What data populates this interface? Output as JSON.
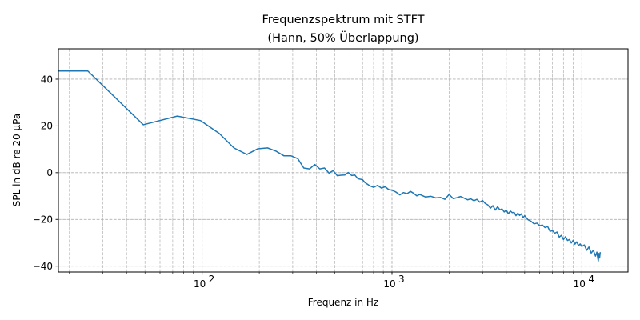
{
  "chart_data": {
    "type": "line",
    "title": "Frequenzspektrum mit STFT",
    "subtitle": "(Hann, 50% Überlappung)",
    "xlabel": "Frequenz in Hz",
    "ylabel": "SPL in dB re 20 µPa",
    "x_scale": "log",
    "xlim": [
      17.5,
      17500
    ],
    "ylim": [
      -42.5,
      53
    ],
    "grid": true,
    "grid_style": "dashed",
    "x_ticks": [
      {
        "value": 100,
        "base": "10",
        "exp": "2"
      },
      {
        "value": 1000,
        "base": "10",
        "exp": "3"
      },
      {
        "value": 10000,
        "base": "10",
        "exp": "4"
      }
    ],
    "y_ticks": [
      -40,
      -20,
      0,
      20,
      40
    ],
    "series": [
      {
        "color": "#1f77b4",
        "points": [
          [
            17.5,
            43.5
          ],
          [
            25,
            43.5
          ],
          [
            49,
            20.5
          ],
          [
            74,
            24.2
          ],
          [
            98,
            22.3
          ],
          [
            123,
            16.8
          ],
          [
            147,
            10.6
          ],
          [
            172,
            7.8
          ],
          [
            196,
            10.2
          ],
          [
            221,
            10.6
          ],
          [
            245,
            9.2
          ],
          [
            270,
            7.2
          ],
          [
            294,
            7.2
          ],
          [
            319,
            6.0
          ],
          [
            343,
            2.0
          ],
          [
            368,
            1.6
          ],
          [
            392,
            3.5
          ],
          [
            417,
            1.6
          ],
          [
            441,
            2.0
          ],
          [
            466,
            -0.2
          ],
          [
            490,
            0.9
          ],
          [
            515,
            -1.3
          ],
          [
            539,
            -1.1
          ],
          [
            564,
            -1.0
          ],
          [
            588,
            0.1
          ],
          [
            613,
            -1.2
          ],
          [
            637,
            -1.0
          ],
          [
            662,
            -2.6
          ],
          [
            700,
            -3.0
          ],
          [
            720,
            -4.2
          ],
          [
            760,
            -5.5
          ],
          [
            800,
            -6.3
          ],
          [
            840,
            -5.4
          ],
          [
            880,
            -6.6
          ],
          [
            920,
            -6.0
          ],
          [
            960,
            -7.2
          ],
          [
            1000,
            -7.5
          ],
          [
            1050,
            -8.3
          ],
          [
            1100,
            -9.5
          ],
          [
            1150,
            -8.5
          ],
          [
            1200,
            -9.0
          ],
          [
            1250,
            -8.0
          ],
          [
            1300,
            -8.8
          ],
          [
            1350,
            -9.9
          ],
          [
            1400,
            -9.3
          ],
          [
            1500,
            -10.4
          ],
          [
            1600,
            -10.1
          ],
          [
            1700,
            -10.8
          ],
          [
            1800,
            -10.6
          ],
          [
            1900,
            -11.4
          ],
          [
            2000,
            -9.3
          ],
          [
            2100,
            -11.1
          ],
          [
            2200,
            -10.7
          ],
          [
            2300,
            -10.2
          ],
          [
            2400,
            -10.9
          ],
          [
            2500,
            -11.6
          ],
          [
            2600,
            -11.2
          ],
          [
            2700,
            -12.0
          ],
          [
            2800,
            -11.4
          ],
          [
            2900,
            -12.6
          ],
          [
            3000,
            -11.9
          ],
          [
            3100,
            -13.2
          ],
          [
            3200,
            -13.8
          ],
          [
            3300,
            -15.2
          ],
          [
            3400,
            -14.1
          ],
          [
            3500,
            -16.0
          ],
          [
            3600,
            -14.6
          ],
          [
            3700,
            -15.9
          ],
          [
            3800,
            -15.5
          ],
          [
            3900,
            -16.8
          ],
          [
            4000,
            -16.0
          ],
          [
            4100,
            -17.6
          ],
          [
            4200,
            -16.4
          ],
          [
            4300,
            -17.1
          ],
          [
            4400,
            -17.0
          ],
          [
            4500,
            -18.4
          ],
          [
            4600,
            -17.3
          ],
          [
            4700,
            -18.3
          ],
          [
            4800,
            -17.6
          ],
          [
            4900,
            -19.3
          ],
          [
            5000,
            -18.4
          ],
          [
            5200,
            -20.1
          ],
          [
            5400,
            -20.8
          ],
          [
            5600,
            -21.9
          ],
          [
            5800,
            -21.6
          ],
          [
            6000,
            -22.7
          ],
          [
            6200,
            -22.4
          ],
          [
            6400,
            -23.5
          ],
          [
            6600,
            -23.0
          ],
          [
            6800,
            -25.1
          ],
          [
            7000,
            -24.8
          ],
          [
            7200,
            -25.9
          ],
          [
            7400,
            -25.4
          ],
          [
            7600,
            -27.6
          ],
          [
            7800,
            -26.8
          ],
          [
            8000,
            -28.6
          ],
          [
            8200,
            -27.4
          ],
          [
            8400,
            -29.0
          ],
          [
            8600,
            -28.6
          ],
          [
            8800,
            -30.1
          ],
          [
            9000,
            -28.9
          ],
          [
            9200,
            -30.6
          ],
          [
            9400,
            -29.6
          ],
          [
            9600,
            -31.2
          ],
          [
            9800,
            -30.5
          ],
          [
            10000,
            -31.6
          ],
          [
            10300,
            -30.9
          ],
          [
            10600,
            -33.2
          ],
          [
            10900,
            -31.8
          ],
          [
            11200,
            -34.4
          ],
          [
            11500,
            -33.2
          ],
          [
            11800,
            -35.7
          ],
          [
            12000,
            -34.0
          ],
          [
            12200,
            -37.8
          ],
          [
            12300,
            -34.6
          ],
          [
            12400,
            -36.5
          ],
          [
            12500,
            -34.0
          ]
        ]
      }
    ]
  }
}
